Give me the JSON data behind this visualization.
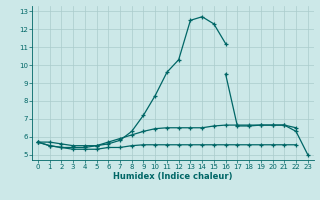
{
  "xlabel": "Humidex (Indice chaleur)",
  "x": [
    0,
    1,
    2,
    3,
    4,
    5,
    6,
    7,
    8,
    9,
    10,
    11,
    12,
    13,
    14,
    15,
    16,
    17,
    18,
    19,
    20,
    21,
    22,
    23
  ],
  "line1": [
    5.7,
    5.7,
    5.6,
    5.5,
    5.5,
    5.5,
    5.6,
    5.8,
    6.3,
    7.2,
    8.3,
    9.6,
    10.3,
    12.5,
    12.7,
    12.3,
    11.2,
    null,
    null,
    null,
    null,
    null,
    null,
    null
  ],
  "line2": [
    5.7,
    5.5,
    5.4,
    5.4,
    5.4,
    5.5,
    5.7,
    5.9,
    6.1,
    6.3,
    6.45,
    6.5,
    6.5,
    6.5,
    6.5,
    6.6,
    6.65,
    6.65,
    6.65,
    6.65,
    6.65,
    6.65,
    6.5,
    null
  ],
  "line3": [
    5.7,
    5.5,
    5.4,
    5.3,
    5.3,
    5.3,
    5.4,
    5.4,
    5.5,
    5.55,
    5.55,
    5.55,
    5.55,
    5.55,
    5.55,
    5.55,
    5.55,
    5.55,
    5.55,
    5.55,
    5.55,
    5.55,
    5.55,
    null
  ],
  "line4": [
    null,
    null,
    null,
    null,
    null,
    null,
    null,
    null,
    null,
    null,
    null,
    null,
    null,
    null,
    null,
    null,
    9.5,
    6.6,
    6.6,
    6.65,
    6.65,
    6.65,
    6.3,
    5.0
  ],
  "bg_color": "#cce8e8",
  "grid_color": "#aacccc",
  "line_color": "#006666",
  "ylim": [
    4.7,
    13.3
  ],
  "xlim": [
    -0.5,
    23.5
  ],
  "yticks": [
    5,
    6,
    7,
    8,
    9,
    10,
    11,
    12,
    13
  ],
  "xticks": [
    0,
    1,
    2,
    3,
    4,
    5,
    6,
    7,
    8,
    9,
    10,
    11,
    12,
    13,
    14,
    15,
    16,
    17,
    18,
    19,
    20,
    21,
    22,
    23
  ],
  "marker": "+"
}
